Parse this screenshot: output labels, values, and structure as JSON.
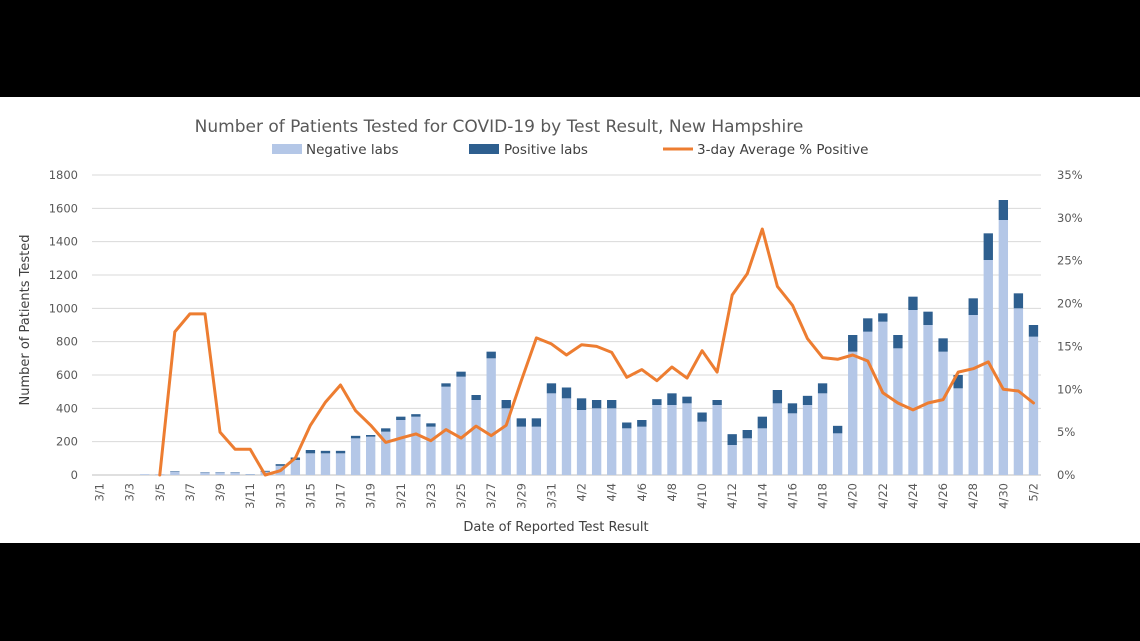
{
  "chart_data": {
    "type": "bar",
    "title": "Number of Patients Tested for COVID-19 by Test Result, New Hampshire",
    "xlabel": "Date of Reported Test Result",
    "ylabel": "Number of Patients Tested",
    "ylim": [
      0,
      1800
    ],
    "y2lim": [
      0,
      35
    ],
    "yticks": [
      "0",
      "200",
      "400",
      "600",
      "800",
      "1000",
      "1200",
      "1400",
      "1600",
      "1800"
    ],
    "y2ticks": [
      "0%",
      "5%",
      "10%",
      "15%",
      "20%",
      "25%",
      "30%",
      "35%"
    ],
    "xtick_labels": [
      "3/1",
      "3/3",
      "3/5",
      "3/7",
      "3/9",
      "3/11",
      "3/13",
      "3/15",
      "3/17",
      "3/19",
      "3/21",
      "3/23",
      "3/25",
      "3/27",
      "3/29",
      "3/31",
      "4/2",
      "4/4",
      "4/6",
      "4/8",
      "4/10",
      "4/12",
      "4/14",
      "4/16",
      "4/18",
      "4/20",
      "4/22",
      "4/24",
      "4/26",
      "4/28",
      "4/30",
      "5/2"
    ],
    "legend_position": "top",
    "stacked": true,
    "series": [
      {
        "name": "Negative labs",
        "color": "#b4c7e7",
        "values": [
          0,
          0,
          0,
          5,
          5,
          20,
          0,
          15,
          15,
          15,
          5,
          20,
          55,
          90,
          130,
          130,
          130,
          220,
          230,
          260,
          330,
          350,
          290,
          530,
          590,
          450,
          700,
          400,
          290,
          290,
          490,
          460,
          390,
          400,
          400,
          280,
          290,
          420,
          420,
          430,
          320,
          420,
          180,
          220,
          280,
          430,
          370,
          420,
          490,
          250,
          740,
          860,
          920,
          760,
          990,
          900,
          740,
          520,
          960,
          1290,
          1530,
          1000,
          830
        ]
      },
      {
        "name": "Positive labs",
        "color": "#2e5f8f",
        "values": [
          0,
          0,
          0,
          0,
          0,
          3,
          0,
          2,
          2,
          2,
          1,
          5,
          10,
          15,
          20,
          15,
          15,
          15,
          10,
          20,
          20,
          15,
          20,
          20,
          30,
          30,
          40,
          50,
          50,
          50,
          60,
          65,
          70,
          50,
          50,
          35,
          40,
          35,
          70,
          40,
          55,
          30,
          65,
          50,
          70,
          80,
          60,
          55,
          60,
          45,
          100,
          80,
          50,
          80,
          80,
          80,
          80,
          80,
          100,
          160,
          120,
          90,
          70
        ]
      },
      {
        "name": "3-day Average % Positive",
        "color": "#ed7d31",
        "axis": "secondary",
        "values": [
          null,
          null,
          null,
          null,
          0,
          16.7,
          18.8,
          18.8,
          5.0,
          3.0,
          3.0,
          0,
          0.5,
          2.0,
          5.8,
          8.5,
          10.5,
          7.5,
          5.8,
          3.8,
          4.3,
          4.8,
          4.0,
          5.3,
          4.3,
          5.7,
          4.6,
          5.8,
          11.0,
          16.0,
          15.3,
          14.0,
          15.2,
          15.0,
          14.3,
          11.4,
          12.3,
          11.0,
          12.6,
          11.3,
          14.5,
          12.0,
          21.0,
          23.5,
          28.7,
          22.0,
          19.8,
          15.9,
          13.7,
          13.5,
          14.0,
          13.3,
          9.6,
          8.4,
          7.6,
          8.4,
          8.8,
          12.0,
          12.4,
          13.2,
          10.0,
          9.8,
          8.4
        ]
      }
    ]
  }
}
